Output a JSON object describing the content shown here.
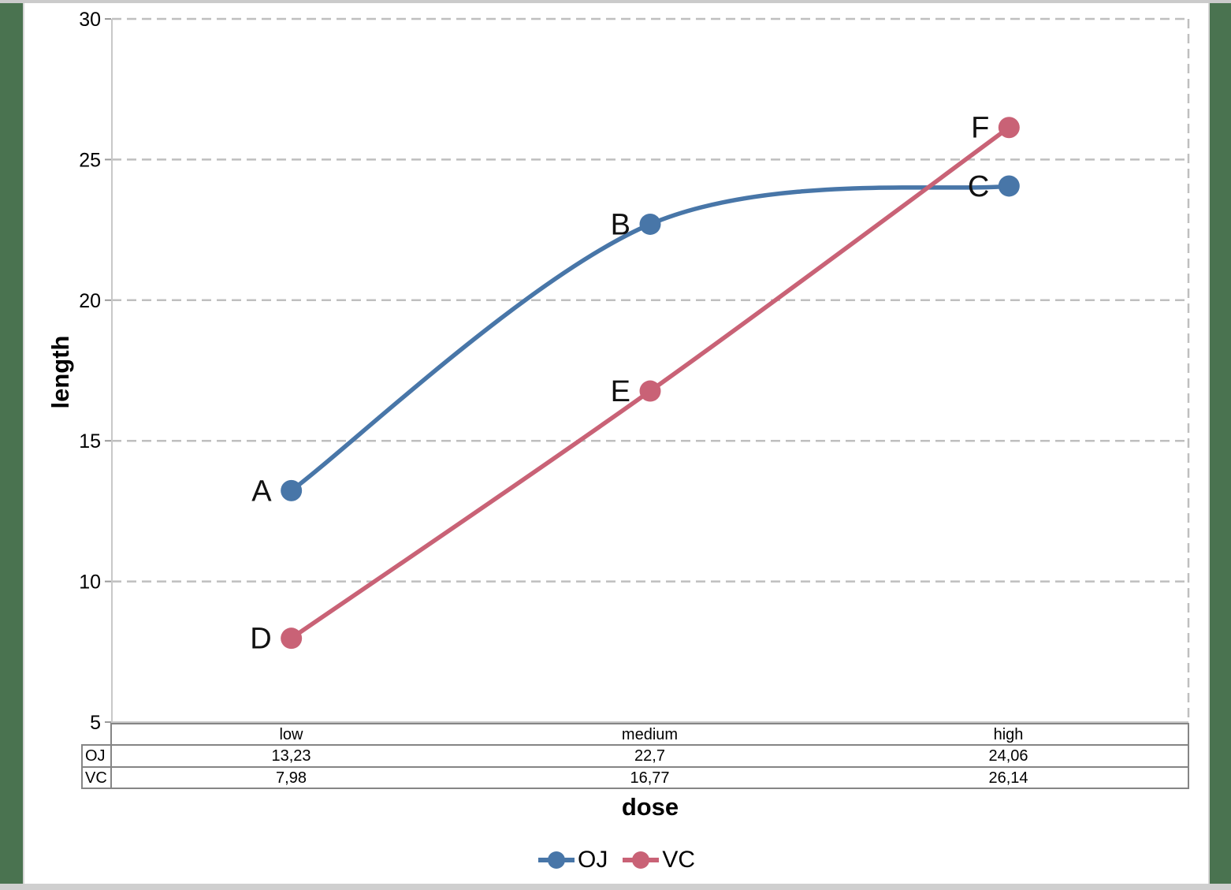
{
  "chart_data": {
    "type": "line",
    "categories": [
      "low",
      "medium",
      "high"
    ],
    "series": [
      {
        "name": "OJ",
        "color": "#4876a8",
        "values": [
          13.23,
          22.7,
          24.06
        ],
        "point_labels": [
          "A",
          "B",
          "C"
        ]
      },
      {
        "name": "VC",
        "color": "#c96276",
        "values": [
          7.98,
          16.77,
          26.14
        ],
        "point_labels": [
          "D",
          "E",
          "F"
        ]
      }
    ],
    "xlabel": "dose",
    "ylabel": "length",
    "ylim": [
      5,
      30
    ],
    "yticks": [
      5,
      10,
      15,
      20,
      25,
      30
    ],
    "grid": "horizontal dashed gridlines, dashed right border",
    "legend_position": "bottom center"
  },
  "axes": {
    "x_title": "dose",
    "y_title": "length",
    "y_tick_labels": [
      "5",
      "10",
      "15",
      "20",
      "25",
      "30"
    ]
  },
  "table": {
    "col_headers": [
      "low",
      "medium",
      "high"
    ],
    "rows": [
      {
        "label": "OJ",
        "values": [
          "13,23",
          "22,7",
          "24,06"
        ]
      },
      {
        "label": "VC",
        "values": [
          "7,98",
          "16,77",
          "26,14"
        ]
      }
    ]
  },
  "legend": {
    "items": [
      {
        "label": "OJ",
        "color": "#4876a8"
      },
      {
        "label": "VC",
        "color": "#c96276"
      }
    ]
  },
  "colors": {
    "frame_green": "#4a7350",
    "frame_gray": "#cbcbcb",
    "gridline": "#bfbfbf",
    "axis_line": "#c8c8c8",
    "tick_mark": "#9a9a9a",
    "table_border": "#858585",
    "text": "#000000"
  }
}
